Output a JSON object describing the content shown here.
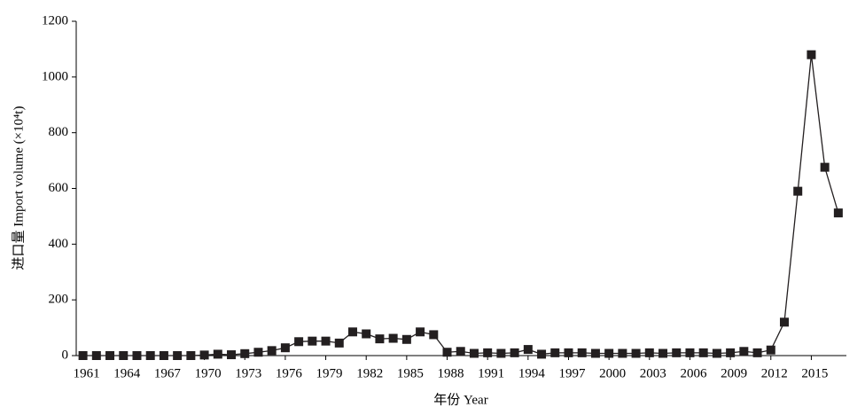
{
  "chart_data": {
    "type": "line",
    "x_label": "年份 Year",
    "y_label": "进口量 Import volume (×10⁴t)",
    "x": [
      1961,
      1962,
      1963,
      1964,
      1965,
      1966,
      1967,
      1968,
      1969,
      1970,
      1971,
      1972,
      1973,
      1974,
      1975,
      1976,
      1977,
      1978,
      1979,
      1980,
      1981,
      1982,
      1983,
      1984,
      1985,
      1986,
      1987,
      1988,
      1989,
      1990,
      1991,
      1992,
      1993,
      1994,
      1995,
      1996,
      1997,
      1998,
      1999,
      2000,
      2001,
      2002,
      2003,
      2004,
      2005,
      2006,
      2007,
      2008,
      2009,
      2010,
      2011,
      2012,
      2013,
      2014,
      2015,
      2016,
      2017
    ],
    "values": [
      0,
      0,
      0,
      0,
      0,
      0,
      0,
      0,
      0,
      2,
      5,
      3,
      7,
      12,
      18,
      28,
      50,
      52,
      52,
      45,
      85,
      78,
      60,
      62,
      58,
      85,
      75,
      12,
      15,
      8,
      10,
      8,
      10,
      22,
      5,
      10,
      10,
      10,
      8,
      8,
      8,
      8,
      10,
      8,
      10,
      10,
      10,
      8,
      10,
      15,
      10,
      20,
      120,
      590,
      1080,
      676,
      512
    ],
    "color": "#231f20",
    "xlim": [
      1960.5,
      2017.6
    ],
    "xticks": [
      1961,
      1964,
      1967,
      1970,
      1973,
      1976,
      1979,
      1982,
      1985,
      1988,
      1991,
      1994,
      1997,
      2000,
      2003,
      2006,
      2009,
      2012,
      2015
    ],
    "ylim": [
      0,
      1200
    ],
    "yticks": [
      0,
      200,
      400,
      600,
      800,
      1000,
      1200
    ]
  }
}
